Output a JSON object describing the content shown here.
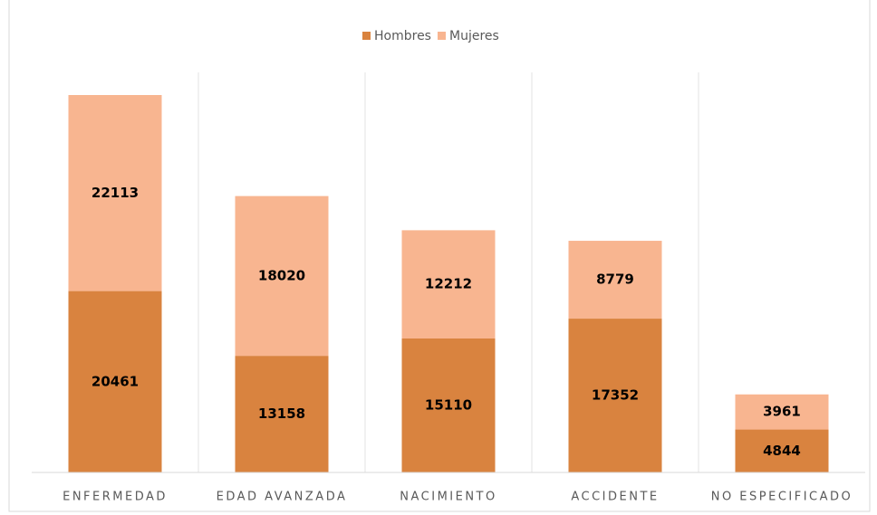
{
  "chart_data": {
    "type": "stacked-bar",
    "categories": [
      "ENFERMEDAD",
      "EDAD AVANZADA",
      "NACIMIENTO",
      "ACCIDENTE",
      "NO ESPECIFICADO"
    ],
    "series": [
      {
        "name": "Hombres",
        "color": "#d9833f",
        "values": [
          20461,
          13158,
          15110,
          17352,
          4844
        ]
      },
      {
        "name": "Mujeres",
        "color": "#f8b590",
        "values": [
          22113,
          18020,
          12212,
          8779,
          3961
        ]
      }
    ],
    "legend": "top"
  }
}
